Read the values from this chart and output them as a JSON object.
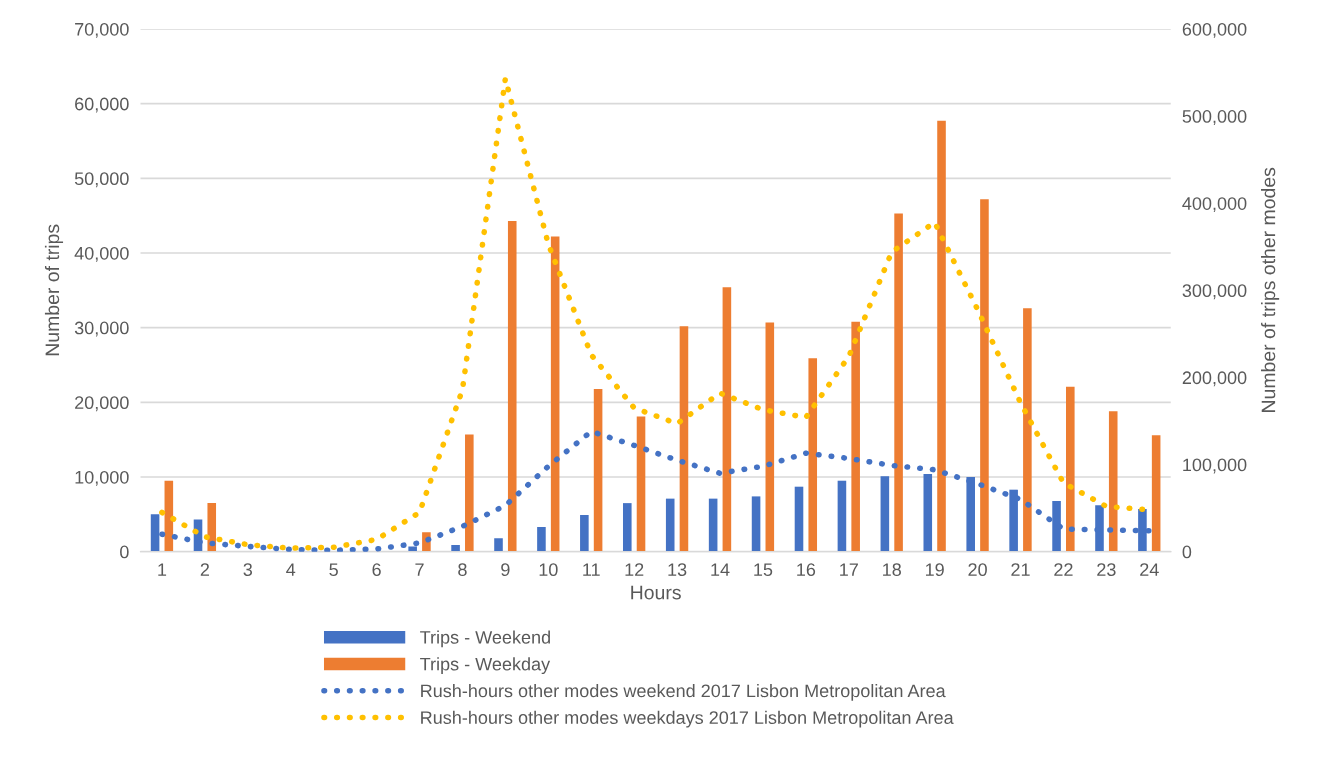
{
  "chart_data": {
    "type": "bar",
    "xlabel": "Hours",
    "ylabel": "Number of trips",
    "y2label": "Number of trips other modes",
    "categories": [
      "1",
      "2",
      "3",
      "4",
      "5",
      "6",
      "7",
      "8",
      "9",
      "10",
      "11",
      "12",
      "13",
      "14",
      "15",
      "16",
      "17",
      "18",
      "19",
      "20",
      "21",
      "22",
      "23",
      "24"
    ],
    "series": [
      {
        "name": "Trips - Weekend",
        "color": "#4472c4",
        "values": [
          5000,
          4300,
          100,
          0,
          0,
          0,
          700,
          900,
          1800,
          3300,
          4900,
          6500,
          7100,
          7100,
          7400,
          8700,
          9500,
          10100,
          10400,
          10000,
          8300,
          6800,
          6200,
          5700
        ]
      },
      {
        "name": "Trips - Weekday",
        "color": "#ed7d31",
        "values": [
          9500,
          6500,
          100,
          0,
          0,
          0,
          2600,
          15700,
          44300,
          42200,
          21800,
          18100,
          30200,
          35400,
          30700,
          25900,
          30800,
          45300,
          57700,
          47200,
          32600,
          22100,
          18800,
          15600
        ]
      },
      {
        "name": "Rush-hours other modes weekend 2017 Lisbon Metropolitan Area",
        "type": "line",
        "axis": "y2",
        "line_style": "dotted",
        "color": "#4472c4",
        "values": [
          20000,
          10000,
          6000,
          2500,
          1500,
          3000,
          10000,
          29000,
          53000,
          98000,
          138000,
          122000,
          105000,
          90000,
          98000,
          113000,
          107000,
          99000,
          94000,
          78000,
          60000,
          26000,
          25000,
          24000
        ]
      },
      {
        "name": "Rush-hours other modes weekdays 2017 Lisbon Metropolitan Area",
        "type": "line",
        "axis": "y2",
        "line_style": "dotted",
        "color": "#ffc000",
        "values": [
          45000,
          17000,
          8000,
          4000,
          5000,
          14000,
          45000,
          186000,
          543000,
          353000,
          226000,
          165000,
          147000,
          182000,
          163000,
          154000,
          224000,
          344000,
          378000,
          278000,
          171000,
          79000,
          52000,
          48000
        ]
      }
    ],
    "ylim": [
      0,
      70000
    ],
    "yticks": [
      {
        "value": 0,
        "label": "0"
      },
      {
        "value": 10000,
        "label": "10,000"
      },
      {
        "value": 20000,
        "label": "20,000"
      },
      {
        "value": 30000,
        "label": "30,000"
      },
      {
        "value": 40000,
        "label": "40,000"
      },
      {
        "value": 50000,
        "label": "50,000"
      },
      {
        "value": 60000,
        "label": "60,000"
      },
      {
        "value": 70000,
        "label": "70,000"
      }
    ],
    "y2lim": [
      0,
      600000
    ],
    "y2ticks": [
      {
        "value": 0,
        "label": "0"
      },
      {
        "value": 100000,
        "label": "100,000"
      },
      {
        "value": 200000,
        "label": "200,000"
      },
      {
        "value": 300000,
        "label": "300,000"
      },
      {
        "value": 400000,
        "label": "400,000"
      },
      {
        "value": 500000,
        "label": "500,000"
      },
      {
        "value": 600000,
        "label": "600,000"
      }
    ],
    "grid": "y",
    "legend": "bottom"
  }
}
